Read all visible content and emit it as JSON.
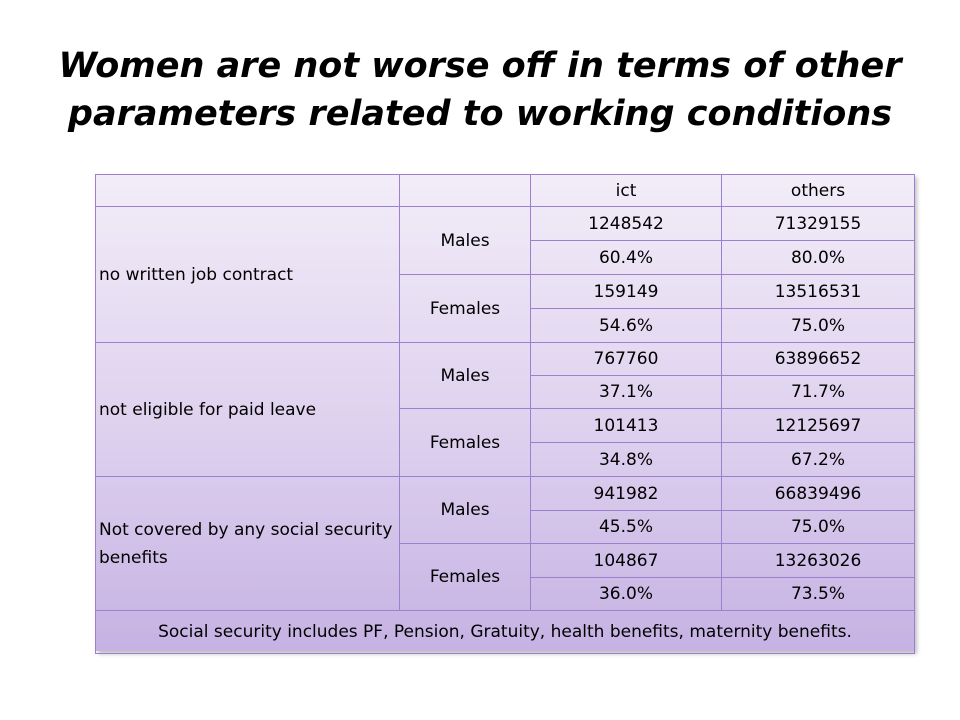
{
  "title": {
    "line1": "Women are not worse off in terms of other",
    "line2": "parameters related to working conditions"
  },
  "table": {
    "header": [
      "",
      "",
      "ict",
      "others"
    ],
    "groups": [
      {
        "label": "no written  job contract",
        "males": {
          "label": "Males",
          "count_ict": "1248542",
          "count_others": "71329155",
          "pct_ict": "60.4%",
          "pct_others": "80.0%"
        },
        "females": {
          "label": "Females",
          "count_ict": "159149",
          "count_others": "13516531",
          "pct_ict": "54.6%",
          "pct_others": "75.0%"
        }
      },
      {
        "label": " not eligible for paid leave",
        "males": {
          "label": "Males",
          "count_ict": "767760",
          "count_others": "63896652",
          "pct_ict": "37.1%",
          "pct_others": "71.7%"
        },
        "females": {
          "label": "Females",
          "count_ict": "101413",
          "count_others": "12125697",
          "pct_ict": "34.8%",
          "pct_others": "67.2%"
        }
      },
      {
        "label": "Not covered by any social security benefits",
        "males": {
          "label": "Males",
          "count_ict": "941982",
          "count_others": "66839496",
          "pct_ict": "45.5%",
          "pct_others": "75.0%"
        },
        "females": {
          "label": "Females",
          "count_ict": "104867",
          "count_others": "13263026",
          "pct_ict": "36.0%",
          "pct_others": "73.5%"
        }
      }
    ],
    "footer": "Social security includes PF, Pension, Gratuity, health benefits, maternity benefits."
  }
}
